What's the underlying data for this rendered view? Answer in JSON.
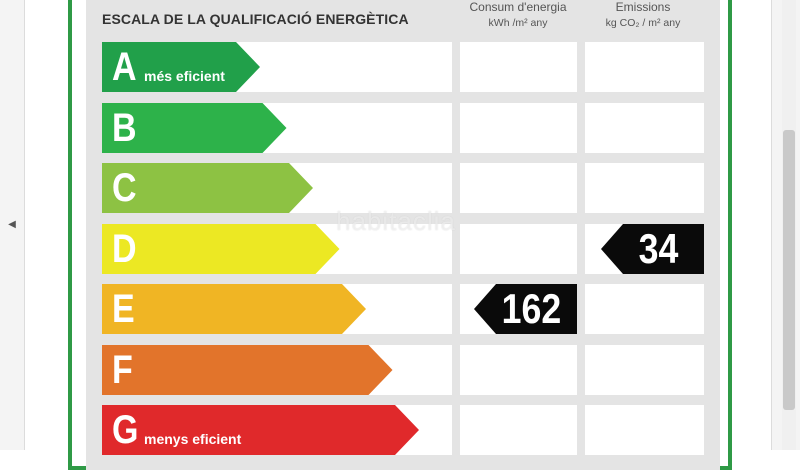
{
  "title": "ESCALA DE LA QUALIFICACIÓ ENERGÈTICA",
  "columns": {
    "consum": {
      "label": "Consum d'energia",
      "unit": "kWh /m² any"
    },
    "emissions": {
      "label": "Emissions",
      "unit": "kg CO₂ / m² any"
    }
  },
  "grades": [
    {
      "letter": "A",
      "caption": "més eficient",
      "color": "#21a04a"
    },
    {
      "letter": "B",
      "caption": "",
      "color": "#2db24a"
    },
    {
      "letter": "C",
      "caption": "",
      "color": "#8dc243"
    },
    {
      "letter": "D",
      "caption": "",
      "color": "#ece823"
    },
    {
      "letter": "E",
      "caption": "",
      "color": "#f0b524"
    },
    {
      "letter": "F",
      "caption": "",
      "color": "#e2742b"
    },
    {
      "letter": "G",
      "caption": "menys eficient",
      "color": "#e0292b"
    }
  ],
  "consum_value": {
    "value": "162",
    "grade": "E"
  },
  "emissions_value": {
    "value": "34",
    "grade": "D"
  },
  "watermark": "habitaclia",
  "icons": {
    "nav": "chevron-left-icon"
  }
}
